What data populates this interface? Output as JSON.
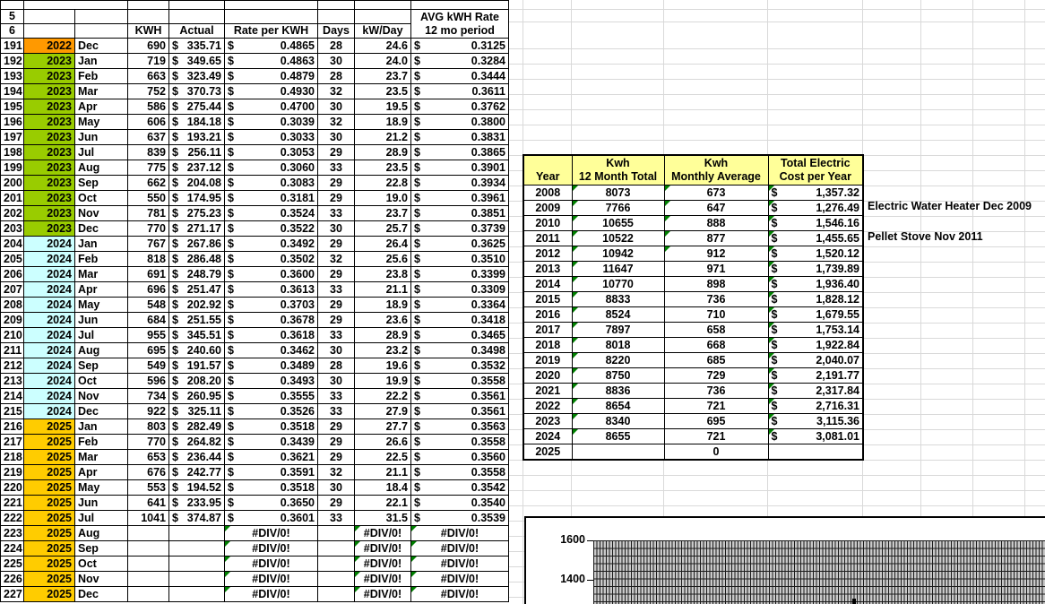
{
  "colors": {
    "year_fill": {
      "2022": "#FF9900",
      "2023": "#99CC00",
      "2024": "#CCFFFF",
      "2025": "#FFCC00"
    },
    "header_blue": "#99CCFF",
    "summary_header_yellow": "#FFFF99",
    "pink_band": "#FF99CC",
    "error_triangle_green": "#008000",
    "plot_fill_gray": "#C9C9C9"
  },
  "main_table": {
    "row5_label": "5",
    "row6_label": "6",
    "headers": {
      "kwh": "KWH",
      "actual": "Actual",
      "rate": "Rate per KWH",
      "days": "Days",
      "kwday": "kW/Day",
      "avg_line1": "AVG kWH Rate",
      "avg_line2": "12 mo period"
    },
    "rows": [
      [
        191,
        "2022",
        "Dec",
        "690",
        "335.71",
        "0.4865",
        "28",
        "24.6",
        "0.3125"
      ],
      [
        192,
        "2023",
        "Jan",
        "719",
        "349.65",
        "0.4863",
        "30",
        "24.0",
        "0.3284"
      ],
      [
        193,
        "2023",
        "Feb",
        "663",
        "323.49",
        "0.4879",
        "28",
        "23.7",
        "0.3444"
      ],
      [
        194,
        "2023",
        "Mar",
        "752",
        "370.73",
        "0.4930",
        "32",
        "23.5",
        "0.3611"
      ],
      [
        195,
        "2023",
        "Apr",
        "586",
        "275.44",
        "0.4700",
        "30",
        "19.5",
        "0.3762"
      ],
      [
        196,
        "2023",
        "May",
        "606",
        "184.18",
        "0.3039",
        "32",
        "18.9",
        "0.3800"
      ],
      [
        197,
        "2023",
        "Jun",
        "637",
        "193.21",
        "0.3033",
        "30",
        "21.2",
        "0.3831"
      ],
      [
        198,
        "2023",
        "Jul",
        "839",
        "256.11",
        "0.3053",
        "29",
        "28.9",
        "0.3865"
      ],
      [
        199,
        "2023",
        "Aug",
        "775",
        "237.12",
        "0.3060",
        "33",
        "23.5",
        "0.3901"
      ],
      [
        200,
        "2023",
        "Sep",
        "662",
        "204.08",
        "0.3083",
        "29",
        "22.8",
        "0.3934"
      ],
      [
        201,
        "2023",
        "Oct",
        "550",
        "174.95",
        "0.3181",
        "29",
        "19.0",
        "0.3961"
      ],
      [
        202,
        "2023",
        "Nov",
        "781",
        "275.23",
        "0.3524",
        "33",
        "23.7",
        "0.3851"
      ],
      [
        203,
        "2023",
        "Dec",
        "770",
        "271.17",
        "0.3522",
        "30",
        "25.7",
        "0.3739"
      ],
      [
        204,
        "2024",
        "Jan",
        "767",
        "267.86",
        "0.3492",
        "29",
        "26.4",
        "0.3625"
      ],
      [
        205,
        "2024",
        "Feb",
        "818",
        "286.48",
        "0.3502",
        "32",
        "25.6",
        "0.3510"
      ],
      [
        206,
        "2024",
        "Mar",
        "691",
        "248.79",
        "0.3600",
        "29",
        "23.8",
        "0.3399"
      ],
      [
        207,
        "2024",
        "Apr",
        "696",
        "251.47",
        "0.3613",
        "33",
        "21.1",
        "0.3309"
      ],
      [
        208,
        "2024",
        "May",
        "548",
        "202.92",
        "0.3703",
        "29",
        "18.9",
        "0.3364"
      ],
      [
        209,
        "2024",
        "Jun",
        "684",
        "251.55",
        "0.3678",
        "29",
        "23.6",
        "0.3418"
      ],
      [
        210,
        "2024",
        "Jul",
        "955",
        "345.51",
        "0.3618",
        "33",
        "28.9",
        "0.3465"
      ],
      [
        211,
        "2024",
        "Aug",
        "695",
        "240.60",
        "0.3462",
        "30",
        "23.2",
        "0.3498"
      ],
      [
        212,
        "2024",
        "Sep",
        "549",
        "191.57",
        "0.3489",
        "28",
        "19.6",
        "0.3532"
      ],
      [
        213,
        "2024",
        "Oct",
        "596",
        "208.20",
        "0.3493",
        "30",
        "19.9",
        "0.3558"
      ],
      [
        214,
        "2024",
        "Nov",
        "734",
        "260.95",
        "0.3555",
        "33",
        "22.2",
        "0.3561"
      ],
      [
        215,
        "2024",
        "Dec",
        "922",
        "325.11",
        "0.3526",
        "33",
        "27.9",
        "0.3561"
      ],
      [
        216,
        "2025",
        "Jan",
        "803",
        "282.49",
        "0.3518",
        "29",
        "27.7",
        "0.3563"
      ],
      [
        217,
        "2025",
        "Feb",
        "770",
        "264.82",
        "0.3439",
        "29",
        "26.6",
        "0.3558"
      ],
      [
        218,
        "2025",
        "Mar",
        "653",
        "236.44",
        "0.3621",
        "29",
        "22.5",
        "0.3560"
      ],
      [
        219,
        "2025",
        "Apr",
        "676",
        "242.77",
        "0.3591",
        "32",
        "21.1",
        "0.3558"
      ],
      [
        220,
        "2025",
        "May",
        "553",
        "194.52",
        "0.3518",
        "30",
        "18.4",
        "0.3542"
      ],
      [
        221,
        "2025",
        "Jun",
        "641",
        "233.95",
        "0.3650",
        "29",
        "22.1",
        "0.3540"
      ],
      [
        222,
        "2025",
        "Jul",
        "1041",
        "374.87",
        "0.3601",
        "33",
        "31.5",
        "0.3539"
      ],
      [
        223,
        "2025",
        "Aug",
        "",
        "",
        "#DIV/0!",
        "",
        "#DIV/0!",
        "#DIV/0!"
      ],
      [
        224,
        "2025",
        "Sep",
        "",
        "",
        "#DIV/0!",
        "",
        "#DIV/0!",
        "#DIV/0!"
      ],
      [
        225,
        "2025",
        "Oct",
        "",
        "",
        "#DIV/0!",
        "",
        "#DIV/0!",
        "#DIV/0!"
      ],
      [
        226,
        "2025",
        "Nov",
        "",
        "",
        "#DIV/0!",
        "",
        "#DIV/0!",
        "#DIV/0!"
      ],
      [
        227,
        "2025",
        "Dec",
        "",
        "",
        "#DIV/0!",
        "",
        "#DIV/0!",
        "#DIV/0!"
      ]
    ]
  },
  "summary_table": {
    "headers": [
      [
        "",
        "Year"
      ],
      [
        "Kwh",
        "12 Month Total"
      ],
      [
        "Kwh",
        "Monthly Average"
      ],
      [
        "Total Electric",
        "Cost per Year"
      ]
    ],
    "rows": [
      {
        "year": "2008",
        "total": "8073",
        "avg": "673",
        "cost": "1,357.32",
        "note": "",
        "tri": [
          1,
          1,
          1
        ]
      },
      {
        "year": "2009",
        "total": "7766",
        "avg": "647",
        "cost": "1,276.49",
        "note": "Electric Water Heater Dec 2009",
        "tri": [
          1,
          1,
          1
        ]
      },
      {
        "year": "2010",
        "total": "10655",
        "avg": "888",
        "cost": "1,546.16",
        "note": "",
        "tri": [
          1,
          1,
          1
        ]
      },
      {
        "year": "2011",
        "total": "10522",
        "avg": "877",
        "cost": "1,455.65",
        "note": "Pellet Stove Nov 2011",
        "tri": [
          1,
          1,
          1
        ]
      },
      {
        "year": "2012",
        "total": "10942",
        "avg": "912",
        "cost": "1,520.12",
        "note": "",
        "tri": [
          1,
          1,
          1
        ]
      },
      {
        "year": "2013",
        "total": "11647",
        "avg": "971",
        "cost": "1,739.89",
        "note": "",
        "tri": [
          1,
          0,
          1
        ]
      },
      {
        "year": "2014",
        "total": "10770",
        "avg": "898",
        "cost": "1,936.40",
        "note": "",
        "tri": [
          1,
          0,
          1
        ]
      },
      {
        "year": "2015",
        "total": "8833",
        "avg": "736",
        "cost": "1,828.12",
        "note": "",
        "tri": [
          1,
          0,
          1
        ]
      },
      {
        "year": "2016",
        "total": "8524",
        "avg": "710",
        "cost": "1,679.55",
        "note": "",
        "tri": [
          1,
          0,
          1
        ]
      },
      {
        "year": "2017",
        "total": "7897",
        "avg": "658",
        "cost": "1,753.14",
        "note": "",
        "tri": [
          1,
          0,
          1
        ]
      },
      {
        "year": "2018",
        "total": "8018",
        "avg": "668",
        "cost": "1,922.84",
        "note": "",
        "tri": [
          1,
          0,
          1
        ]
      },
      {
        "year": "2019",
        "total": "8220",
        "avg": "685",
        "cost": "2,040.07",
        "note": "",
        "tri": [
          1,
          0,
          1
        ]
      },
      {
        "year": "2020",
        "total": "8750",
        "avg": "729",
        "cost": "2,191.77",
        "note": "",
        "tri": [
          1,
          0,
          1
        ]
      },
      {
        "year": "2021",
        "total": "8836",
        "avg": "736",
        "cost": "2,317.84",
        "note": "",
        "tri": [
          1,
          0,
          1
        ]
      },
      {
        "year": "2022",
        "total": "8654",
        "avg": "721",
        "cost": "2,716.31",
        "note": "",
        "tri": [
          1,
          0,
          1
        ]
      },
      {
        "year": "2023",
        "total": "8340",
        "avg": "695",
        "cost": "3,115.36",
        "note": "",
        "tri": [
          1,
          0,
          1
        ]
      },
      {
        "year": "2024",
        "total": "8655",
        "avg": "721",
        "cost": "3,081.01",
        "note": "",
        "tri": [
          1,
          0,
          1
        ]
      },
      {
        "year": "2025",
        "total": "",
        "avg": "0",
        "cost": "",
        "note": "",
        "tri": [
          0,
          0,
          0
        ]
      }
    ]
  },
  "chart": {
    "type": "column",
    "y_ticks": [
      "1600",
      "1400"
    ],
    "y_tick_values": [
      1600,
      1400
    ],
    "visible": "top edge of embedded chart only; crosshatch plot area starting at 1600 line",
    "tall_column_top_approx": 1415
  }
}
